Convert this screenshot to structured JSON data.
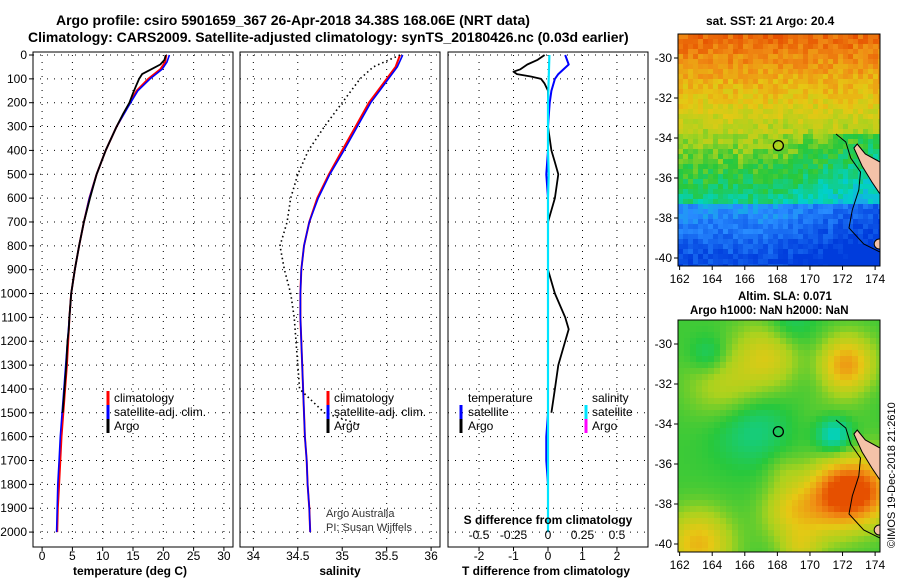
{
  "header": {
    "title_line1": "Argo profile: csiro 5901659_367 26-Apr-2018 34.38S 168.06E (NRT data)",
    "title_line2": "Climatology: CARS2009. Satellite-adjusted climatology: synTS_20180426.nc (0.03d earlier)",
    "stamp": "©IMOS 19-Dec-2018 21:2610"
  },
  "colors": {
    "climatology": "#ff0000",
    "satellite": "#0000ff",
    "argo": "#000000",
    "salinity_satellite": "#00e5ff",
    "salinity_argo": "#ff00ff"
  },
  "depth_axis": {
    "ylim": [
      0,
      2050
    ],
    "ticks": [
      0,
      100,
      200,
      300,
      400,
      500,
      600,
      700,
      800,
      900,
      1000,
      1100,
      1200,
      1300,
      1400,
      1500,
      1600,
      1700,
      1800,
      1900,
      2000
    ]
  },
  "legend_profile": {
    "climatology": "climatology",
    "satellite_adj": "satellite-adj. clim.",
    "argo": "Argo"
  },
  "legend_diff": {
    "temperature": "temperature",
    "salinity": "salinity",
    "satellite": "satellite",
    "argo": "Argo"
  },
  "credits": {
    "line1": "Argo Australia",
    "line2": "PI: Susan Wijffels"
  },
  "maps": {
    "sst": {
      "title": "sat. SST: 21 Argo: 20.4",
      "xticks": [
        "162",
        "164",
        "166",
        "168",
        "170",
        "172",
        "174"
      ],
      "yticks": [
        "-30",
        "-32",
        "-34",
        "-36",
        "-38",
        "-40"
      ],
      "marker": {
        "lon": 168.06,
        "lat": -34.38
      }
    },
    "sla": {
      "title_line1": "Altim. SLA: 0.071",
      "title_line2": "Argo h1000: NaN h2000: NaN",
      "xticks": [
        "162",
        "164",
        "166",
        "168",
        "170",
        "172",
        "174"
      ],
      "yticks": [
        "-30",
        "-32",
        "-34",
        "-36",
        "-38",
        "-40"
      ],
      "marker": {
        "lon": 168.06,
        "lat": -34.38
      }
    }
  },
  "chart_data": [
    {
      "type": "line",
      "name": "temperature",
      "xlabel": "temperature (deg C)",
      "xlim": [
        -1.5,
        31.5
      ],
      "xticks": [
        "0",
        "5",
        "10",
        "15",
        "20",
        "25",
        "30"
      ],
      "xtick_values": [
        0,
        5,
        10,
        15,
        20,
        25,
        30
      ],
      "series": [
        {
          "name": "climatology",
          "depth": [
            0,
            30,
            60,
            100,
            150,
            200,
            300,
            400,
            500,
            600,
            700,
            800,
            900,
            1000,
            1100,
            1200,
            1300,
            1400,
            1500,
            1600,
            1700,
            1800,
            1900,
            2000
          ],
          "values": [
            20.5,
            20.3,
            19.5,
            17.5,
            15.6,
            14.5,
            12.3,
            10.5,
            9.0,
            7.8,
            6.9,
            6.1,
            5.4,
            4.8,
            4.5,
            4.3,
            4.1,
            3.8,
            3.5,
            3.2,
            3.0,
            2.8,
            2.6,
            2.5
          ]
        },
        {
          "name": "satellite",
          "depth": [
            0,
            30,
            60,
            100,
            150,
            200,
            300,
            400,
            500,
            600,
            700,
            800,
            900,
            1000,
            1100,
            1200,
            1300,
            1400,
            1500,
            1600,
            1700,
            1800,
            1900,
            2000
          ],
          "values": [
            21.0,
            20.6,
            19.8,
            17.8,
            15.8,
            14.6,
            12.3,
            10.5,
            9.0,
            7.8,
            6.9,
            6.1,
            5.4,
            4.8,
            4.5,
            4.2,
            3.9,
            3.6,
            3.3,
            3.0,
            2.8,
            2.6,
            2.5,
            2.4
          ]
        },
        {
          "name": "argo",
          "depth": [
            0,
            20,
            40,
            60,
            80,
            100,
            130,
            160,
            200,
            250,
            300,
            400,
            500,
            600,
            700,
            800,
            900,
            1000,
            1100,
            1150,
            1200,
            1300,
            1400,
            1500
          ],
          "values": [
            20.4,
            20.2,
            19.5,
            18.0,
            16.5,
            16.0,
            15.5,
            15.0,
            14.4,
            13.3,
            12.3,
            10.5,
            9.0,
            7.9,
            6.9,
            6.1,
            5.4,
            4.8,
            4.5,
            4.4,
            4.2,
            4.0,
            3.7,
            3.4
          ]
        }
      ]
    },
    {
      "type": "line",
      "name": "salinity",
      "xlabel": "salinity",
      "xlim": [
        33.85,
        36.1
      ],
      "xticks": [
        "34",
        "34.5",
        "35",
        "35.5",
        "36"
      ],
      "xtick_values": [
        34,
        34.5,
        35,
        35.5,
        36
      ],
      "series": [
        {
          "name": "climatology",
          "depth": [
            0,
            50,
            100,
            150,
            200,
            300,
            400,
            500,
            600,
            700,
            800,
            900,
            1000,
            1100,
            1200,
            1300,
            1400,
            1500,
            1600,
            1700,
            1800,
            1900,
            2000
          ],
          "values": [
            35.65,
            35.6,
            35.5,
            35.4,
            35.3,
            35.15,
            35.0,
            34.85,
            34.72,
            34.63,
            34.57,
            34.54,
            34.53,
            34.53,
            34.54,
            34.55,
            34.56,
            34.57,
            34.58,
            34.6,
            34.61,
            34.63,
            34.64
          ]
        },
        {
          "name": "satellite",
          "depth": [
            0,
            50,
            100,
            150,
            200,
            300,
            400,
            500,
            600,
            700,
            800,
            900,
            1000,
            1100,
            1200,
            1300,
            1400,
            1500,
            1600,
            1700,
            1800,
            1900,
            2000
          ],
          "values": [
            35.68,
            35.62,
            35.52,
            35.42,
            35.32,
            35.17,
            35.02,
            34.86,
            34.73,
            34.63,
            34.57,
            34.54,
            34.53,
            34.53,
            34.54,
            34.55,
            34.56,
            34.57,
            34.58,
            34.6,
            34.61,
            34.63,
            34.64
          ]
        },
        {
          "name": "argo",
          "depth": [
            0,
            50,
            100,
            150,
            200,
            250,
            300,
            400,
            500,
            600,
            700,
            800,
            900,
            1000,
            1100,
            1200,
            1300,
            1400,
            1500,
            1550
          ],
          "values": [
            35.65,
            35.35,
            35.2,
            35.1,
            35.0,
            34.9,
            34.8,
            34.62,
            34.5,
            34.42,
            34.38,
            34.3,
            34.35,
            34.42,
            34.46,
            34.48,
            34.5,
            34.52,
            34.8,
            35.2
          ]
        }
      ]
    },
    {
      "type": "line",
      "name": "difference",
      "xlabel": "T difference from climatology",
      "xlabel_top": "S difference from climatology",
      "xlim": [
        -2.9,
        2.9
      ],
      "xticks": [
        "-2",
        "-1",
        "0",
        "1",
        "2"
      ],
      "xtick_values": [
        -2,
        -1,
        0,
        1,
        2
      ],
      "xticks_top": [
        "-0.5",
        "-0.25",
        "0",
        "0.25",
        "0.5"
      ],
      "xtick_top_values": [
        -0.5,
        -0.25,
        0,
        0.25,
        0.5
      ],
      "series": [
        {
          "name": "temperature satellite",
          "depth": [
            0,
            40,
            80,
            100,
            150,
            200,
            300,
            400,
            500,
            600,
            700,
            800,
            900,
            1000,
            1100,
            1200,
            1300,
            1400,
            1500,
            1600,
            1700,
            1800,
            1900,
            2000
          ],
          "values": [
            0.5,
            0.6,
            0.3,
            0.2,
            0.1,
            0.05,
            0.0,
            0.0,
            -0.05,
            0.0,
            0.0,
            0.0,
            0.0,
            0.0,
            0.0,
            0.0,
            0.0,
            0.0,
            0.0,
            -0.05,
            -0.05,
            0.0,
            0.0,
            0.0
          ]
        },
        {
          "name": "temperature argo",
          "depth": [
            0,
            20,
            40,
            60,
            70,
            80,
            90,
            100,
            120,
            150,
            200,
            300,
            400,
            450,
            500,
            600,
            700,
            800,
            900,
            1000,
            1100,
            1150,
            1200,
            1300,
            1400,
            1500
          ],
          "values": [
            -0.1,
            -0.3,
            -0.6,
            -0.8,
            -1.0,
            -0.9,
            -0.5,
            -0.2,
            -0.1,
            0.0,
            0.0,
            0.0,
            0.1,
            0.2,
            0.3,
            0.2,
            0.0,
            0.0,
            0.0,
            0.2,
            0.5,
            0.6,
            0.5,
            0.3,
            0.2,
            0.1
          ]
        },
        {
          "name": "salinity satellite",
          "depth": [
            0,
            100,
            200,
            300,
            400,
            500,
            600,
            700,
            800,
            900,
            1000,
            1200,
            1400,
            1600,
            1800,
            2000
          ],
          "values": [
            0.01,
            0.005,
            0.0,
            0.0,
            0.0,
            0.005,
            0.0,
            0.0,
            0.0,
            0.0,
            0.0,
            0.0,
            0.0,
            0.0,
            0.0,
            0.0
          ]
        }
      ]
    }
  ]
}
